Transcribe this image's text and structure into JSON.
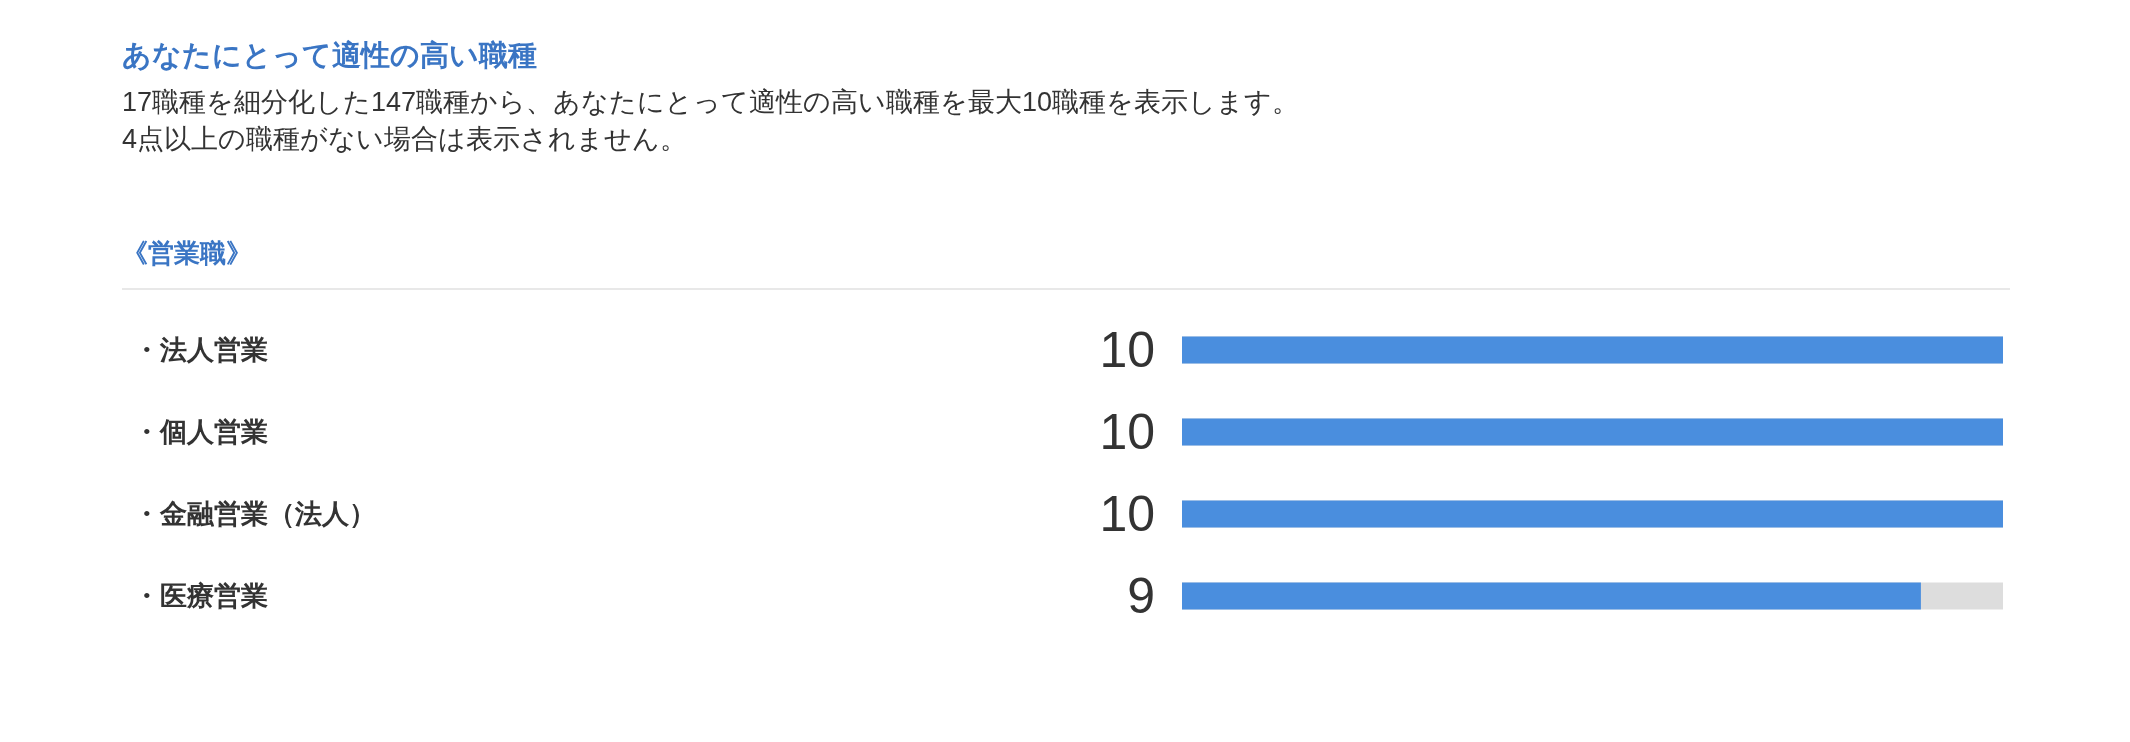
{
  "chart_data": {
    "type": "bar",
    "orientation": "horizontal",
    "title": "あなたにとって適性の高い職種",
    "subtitle": "17職種を細分化した147職種から、あなたにとって適性の高い職種を最大10職種を表示します。\n4点以上の職種がない場合は表示されません。",
    "annotations": [
      "《営業職》"
    ],
    "categories": [
      "・法人営業",
      "・個人営業",
      "・金融営業（法人）",
      "・医療営業"
    ],
    "values": [
      10,
      10,
      10,
      9
    ],
    "color": "#4a8ede",
    "xlim": [
      0,
      10
    ],
    "data_labels": true,
    "tick_labels": "y"
  }
}
